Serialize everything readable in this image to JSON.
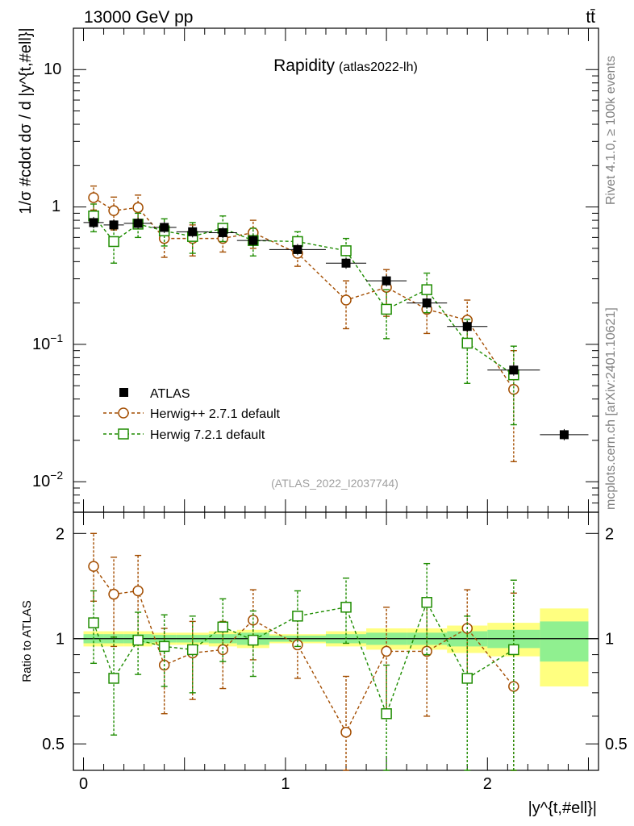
{
  "header": {
    "left": "13000 GeV pp",
    "right": "tt̄"
  },
  "side_labels": {
    "rivet": "Rivet 4.1.0, ≥ 100k events",
    "mcplots": "mcplots.cern.ch [arXiv:2401.10621]"
  },
  "colors": {
    "data": "#000000",
    "herwigpp": "#a34d00",
    "herwig7": "#1e8c00",
    "band_yellow": "#ffff80",
    "band_green": "#90f090"
  },
  "chart_data": [
    {
      "type": "scatter",
      "panel": "main",
      "title": "Rapidity",
      "subtitle": "(atlas2022-lh)",
      "watermark": "(ATLAS_2022_I2037744)",
      "ylabel": "1/σ #cdot dσ / d |y^{t,#ell}|",
      "yscale": "log",
      "xlim": [
        -0.05,
        2.55
      ],
      "ylim": [
        0.006,
        20
      ],
      "ytick_labels": {
        "m2": "10",
        "m2exp": "−2",
        "m1": "10",
        "m1exp": "−1",
        "t1": "1",
        "t10": "10"
      },
      "legend_position": "center-left",
      "series": [
        {
          "name": "ATLAS",
          "style": "data",
          "x": [
            0.05,
            0.15,
            0.27,
            0.4,
            0.54,
            0.69,
            0.84,
            1.06,
            1.3,
            1.5,
            1.7,
            1.9,
            2.13,
            2.38
          ],
          "xerr": [
            0.05,
            0.05,
            0.07,
            0.06,
            0.08,
            0.07,
            0.08,
            0.14,
            0.1,
            0.1,
            0.1,
            0.1,
            0.13,
            0.12
          ],
          "y": [
            0.77,
            0.74,
            0.76,
            0.71,
            0.66,
            0.65,
            0.57,
            0.49,
            0.39,
            0.29,
            0.2,
            0.135,
            0.065,
            0.022
          ]
        },
        {
          "name": "Herwig++ 2.7.1 default",
          "style": "circle",
          "x": [
            0.05,
            0.15,
            0.27,
            0.4,
            0.54,
            0.69,
            0.84,
            1.06,
            1.3,
            1.5,
            1.7,
            1.9,
            2.13
          ],
          "y": [
            1.17,
            0.94,
            0.99,
            0.59,
            0.59,
            0.59,
            0.65,
            0.46,
            0.21,
            0.26,
            0.18,
            0.15,
            0.047
          ],
          "y_low": [
            0.95,
            0.68,
            0.76,
            0.43,
            0.44,
            0.47,
            0.5,
            0.37,
            0.13,
            0.16,
            0.12,
            0.1,
            0.014
          ],
          "y_high": [
            1.42,
            1.18,
            1.22,
            0.74,
            0.74,
            0.72,
            0.8,
            0.55,
            0.29,
            0.35,
            0.24,
            0.21,
            0.09
          ]
        },
        {
          "name": "Herwig 7.2.1 default",
          "style": "square",
          "x": [
            0.05,
            0.15,
            0.27,
            0.4,
            0.54,
            0.69,
            0.84,
            1.06,
            1.3,
            1.5,
            1.7,
            1.9,
            2.13
          ],
          "y": [
            0.86,
            0.56,
            0.75,
            0.67,
            0.61,
            0.7,
            0.57,
            0.56,
            0.48,
            0.18,
            0.25,
            0.102,
            0.06
          ],
          "y_low": [
            0.66,
            0.39,
            0.6,
            0.52,
            0.46,
            0.56,
            0.44,
            0.46,
            0.38,
            0.11,
            0.17,
            0.052,
            0.026
          ],
          "y_high": [
            1.05,
            0.73,
            0.9,
            0.82,
            0.77,
            0.86,
            0.7,
            0.66,
            0.59,
            0.25,
            0.33,
            0.152,
            0.097
          ]
        }
      ]
    },
    {
      "type": "scatter",
      "panel": "ratio",
      "ylabel": "Ratio to ATLAS",
      "xlabel": "|y^{t,#ell}|",
      "xlim": [
        -0.05,
        2.55
      ],
      "ylim": [
        0.42,
        2.3
      ],
      "xtick_labels": [
        "0",
        "1",
        "2"
      ],
      "ytick_labels": [
        "0.5",
        "1",
        "2"
      ],
      "bands": {
        "x_low": [
          0.0,
          0.1,
          0.2,
          0.34,
          0.46,
          0.62,
          0.76,
          0.92,
          1.2,
          1.4,
          1.6,
          1.8,
          2.0,
          2.26
        ],
        "x_high": [
          0.1,
          0.2,
          0.34,
          0.46,
          0.62,
          0.76,
          0.92,
          1.2,
          1.4,
          1.6,
          1.8,
          2.0,
          2.26,
          2.5
        ],
        "yellow_low": [
          0.95,
          0.95,
          0.95,
          0.96,
          0.96,
          0.95,
          0.94,
          0.97,
          0.95,
          0.93,
          0.93,
          0.91,
          0.89,
          0.73
        ],
        "yellow_high": [
          1.05,
          1.05,
          1.05,
          1.04,
          1.04,
          1.05,
          1.06,
          1.03,
          1.05,
          1.07,
          1.07,
          1.09,
          1.11,
          1.22
        ],
        "green_low": [
          0.97,
          0.97,
          0.97,
          0.975,
          0.975,
          0.97,
          0.96,
          0.98,
          0.97,
          0.96,
          0.96,
          0.95,
          0.94,
          0.86
        ],
        "green_high": [
          1.03,
          1.03,
          1.03,
          1.025,
          1.025,
          1.03,
          1.04,
          1.02,
          1.03,
          1.04,
          1.04,
          1.05,
          1.06,
          1.12
        ]
      },
      "series": [
        {
          "name": "Herwig++ 2.7.1 default",
          "style": "circle",
          "x": [
            0.05,
            0.15,
            0.27,
            0.4,
            0.54,
            0.69,
            0.84,
            1.06,
            1.3,
            1.5,
            1.7,
            1.9,
            2.13
          ],
          "y": [
            1.61,
            1.34,
            1.37,
            0.84,
            0.91,
            0.93,
            1.13,
            0.96,
            0.54,
            0.92,
            0.92,
            1.07,
            0.73
          ],
          "y_low": [
            1.28,
            0.95,
            1.0,
            0.61,
            0.67,
            0.72,
            0.87,
            0.77,
            0.31,
            0.6,
            0.6,
            0.78,
            0.2
          ],
          "y_high": [
            2.0,
            1.71,
            1.73,
            1.07,
            1.12,
            1.12,
            1.38,
            1.14,
            0.78,
            1.23,
            1.24,
            1.38,
            1.35
          ]
        },
        {
          "name": "Herwig 7.2.1 default",
          "style": "square",
          "x": [
            0.05,
            0.15,
            0.27,
            0.4,
            0.54,
            0.69,
            0.84,
            1.06,
            1.3,
            1.5,
            1.7,
            1.9,
            2.13
          ],
          "y": [
            1.11,
            0.77,
            0.99,
            0.95,
            0.93,
            1.08,
            0.99,
            1.16,
            1.23,
            0.61,
            1.27,
            0.77,
            0.93
          ],
          "y_low": [
            0.85,
            0.53,
            0.79,
            0.73,
            0.7,
            0.86,
            0.78,
            0.95,
            0.97,
            0.38,
            0.9,
            0.38,
            0.4
          ],
          "y_high": [
            1.37,
            1.01,
            1.19,
            1.17,
            1.16,
            1.3,
            1.2,
            1.37,
            1.49,
            0.84,
            1.64,
            1.16,
            1.47
          ]
        }
      ]
    }
  ]
}
